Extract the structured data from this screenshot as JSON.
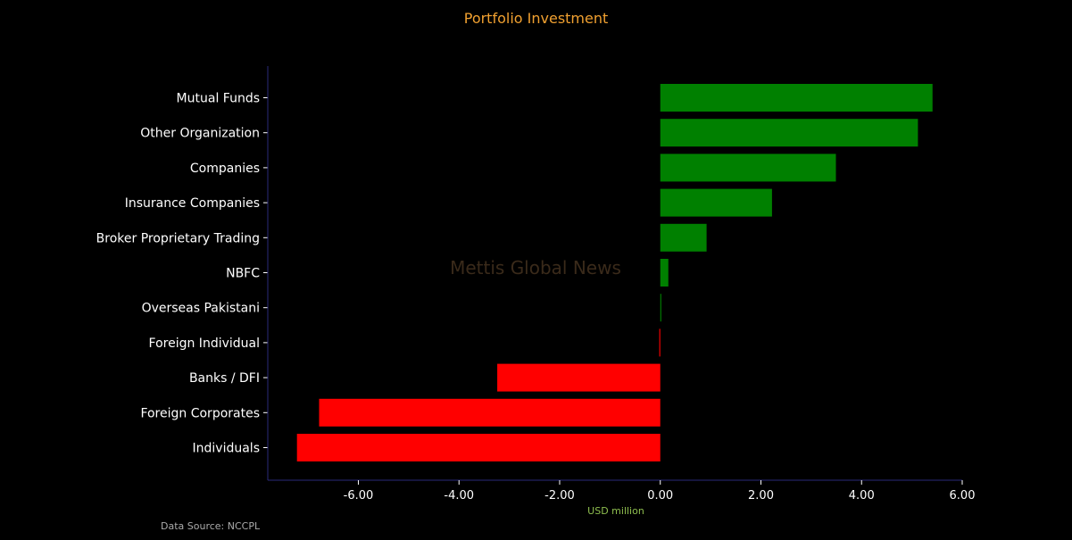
{
  "chart_data": {
    "type": "bar",
    "orientation": "horizontal",
    "title": "Portfolio Investment",
    "xlabel": "USD million",
    "ylabel": "",
    "xlim": [
      -7.8,
      6.0
    ],
    "xticks": [
      "-6.00",
      "-4.00",
      "-2.00",
      "0.00",
      "2.00",
      "4.00",
      "6.00"
    ],
    "xtick_values": [
      -6,
      -4,
      -2,
      0,
      2,
      4,
      6
    ],
    "grid": false,
    "categories": [
      "Mutual Funds",
      "Other Organization",
      "Companies",
      "Insurance Companies",
      "Broker Proprietary Trading",
      "NBFC",
      "Overseas Pakistani",
      "Foreign Individual",
      "Banks / DFI",
      "Foreign Corporates ",
      "Individuals"
    ],
    "values": [
      5.41,
      5.12,
      3.49,
      2.22,
      0.92,
      0.16,
      0.02,
      -0.02,
      -3.24,
      -6.78,
      -7.22
    ],
    "colors": {
      "positive": "#008000",
      "negative": "#ff0000",
      "axis": "#2a2a7a",
      "title": "#f0a030",
      "xlabel": "#8fbf4f"
    },
    "source": "Data Source: NCCPL",
    "watermark": "Mettis Global News"
  }
}
